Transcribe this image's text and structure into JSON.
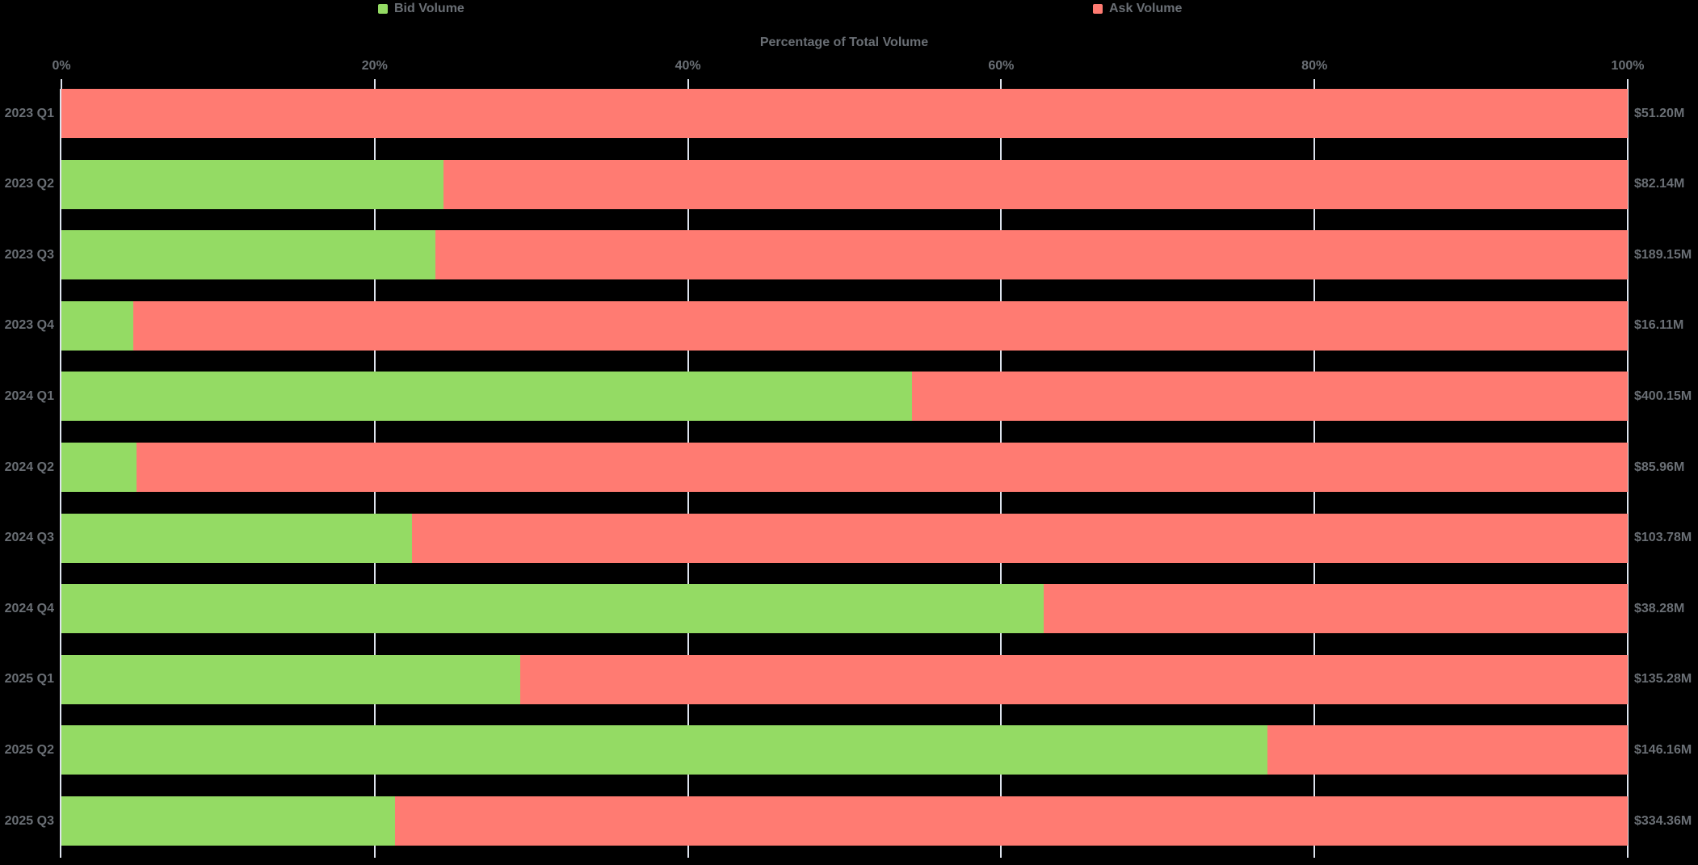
{
  "colors": {
    "background": "#000000",
    "bid": "#94DB64",
    "ask": "#FF7B72",
    "text": "#6A6F75",
    "grid": "#DDE3ED"
  },
  "chart_data": {
    "type": "bar",
    "orientation": "horizontal",
    "stacked": true,
    "normalized_to_100_percent": true,
    "title": "Percentage of Total Volume",
    "xlabel": "",
    "ylabel": "",
    "xlim": [
      0,
      100
    ],
    "x_tick_labels": [
      "0%",
      "20%",
      "40%",
      "60%",
      "80%",
      "100%"
    ],
    "grid": true,
    "legend_position": "top",
    "background": "#000000",
    "categories": [
      "2023 Q1",
      "2023 Q2",
      "2023 Q3",
      "2023 Q4",
      "2024 Q1",
      "2024 Q2",
      "2024 Q3",
      "2024 Q4",
      "2025 Q1",
      "2025 Q2",
      "2025 Q3"
    ],
    "series": [
      {
        "name": "Bid Volume",
        "color": "#94DB64",
        "unit": "% of total volume",
        "values": [
          0,
          24.4,
          23.9,
          4.6,
          54.3,
          4.8,
          22.4,
          62.7,
          29.3,
          77.0,
          21.3
        ]
      },
      {
        "name": "Ask Volume",
        "color": "#FF7B72",
        "unit": "% of total volume",
        "values": [
          100,
          75.6,
          76.1,
          95.4,
          45.7,
          95.2,
          77.6,
          37.3,
          70.7,
          23.0,
          78.7
        ]
      }
    ],
    "bar_total_labels": [
      "$51.20M",
      "$82.14M",
      "$189.15M",
      "$16.11M",
      "$400.15M",
      "$85.96M",
      "$103.78M",
      "$38.28M",
      "$135.28M",
      "$146.16M",
      "$334.36M"
    ]
  }
}
